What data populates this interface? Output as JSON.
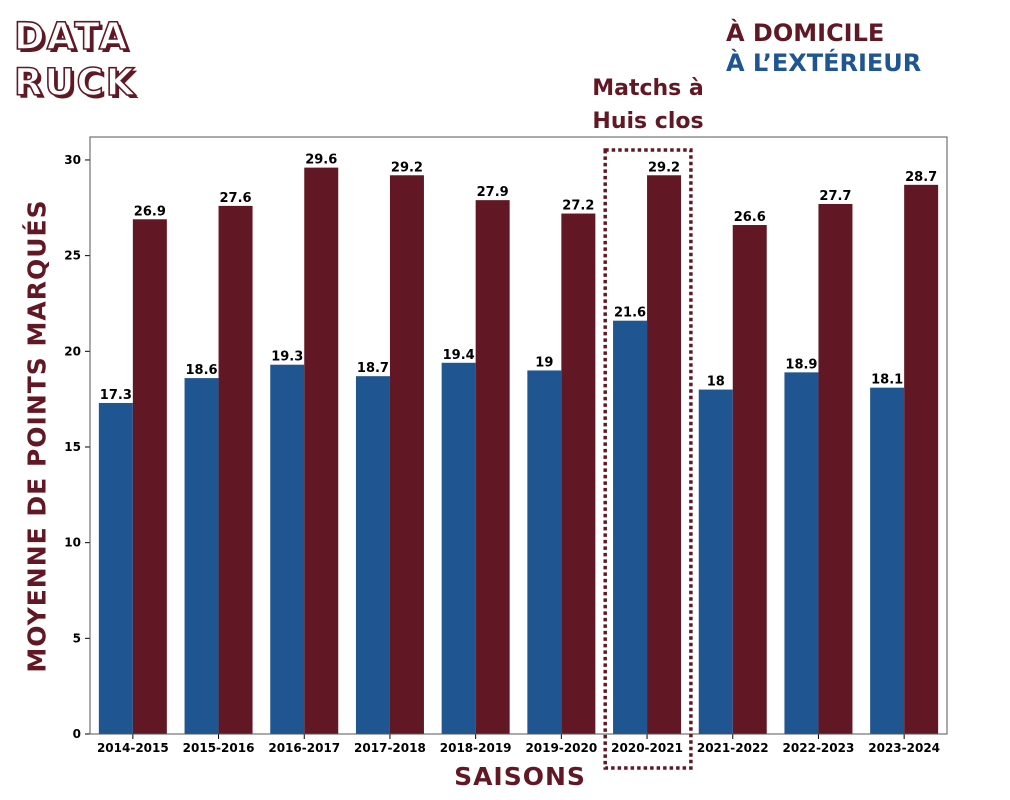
{
  "logo": {
    "line1": "DATA",
    "line2": "RUCK"
  },
  "legend": {
    "home": "À DOMICILE",
    "away": "À L’EXTÉRIEUR"
  },
  "annotation": {
    "line1": "Matchs à",
    "line2": "Huis clos",
    "season": "2020-2021"
  },
  "colors": {
    "home": "#621824",
    "away": "#1f5591",
    "title": "#621824"
  },
  "chart_data": {
    "type": "bar",
    "title": "",
    "xlabel": "SAISONS",
    "ylabel": "MOYENNE DE POINTS MARQUÉS",
    "ylim": [
      0,
      31.2
    ],
    "yticks": [
      0,
      5,
      10,
      15,
      20,
      25,
      30
    ],
    "grid": false,
    "legend_position": "top-right",
    "categories": [
      "2014-2015",
      "2015-2016",
      "2016-2017",
      "2017-2018",
      "2018-2019",
      "2019-2020",
      "2020-2021",
      "2021-2022",
      "2022-2023",
      "2023-2024"
    ],
    "series": [
      {
        "name": "À L’EXTÉRIEUR",
        "color": "#1f5591",
        "values": [
          17.3,
          18.6,
          19.3,
          18.7,
          19.4,
          19,
          21.6,
          18,
          18.9,
          18.1
        ],
        "labels": [
          "17.3",
          "18.6",
          "19.3",
          "18.7",
          "19.4",
          "19",
          "21.6",
          "18",
          "18.9",
          "18.1"
        ]
      },
      {
        "name": "À DOMICILE",
        "color": "#621824",
        "values": [
          26.9,
          27.6,
          29.6,
          29.2,
          27.9,
          27.2,
          29.2,
          26.6,
          27.7,
          28.7
        ],
        "labels": [
          "26.9",
          "27.6",
          "29.6",
          "29.2",
          "27.9",
          "27.2",
          "29.2",
          "26.6",
          "27.7",
          "28.7"
        ]
      }
    ]
  }
}
